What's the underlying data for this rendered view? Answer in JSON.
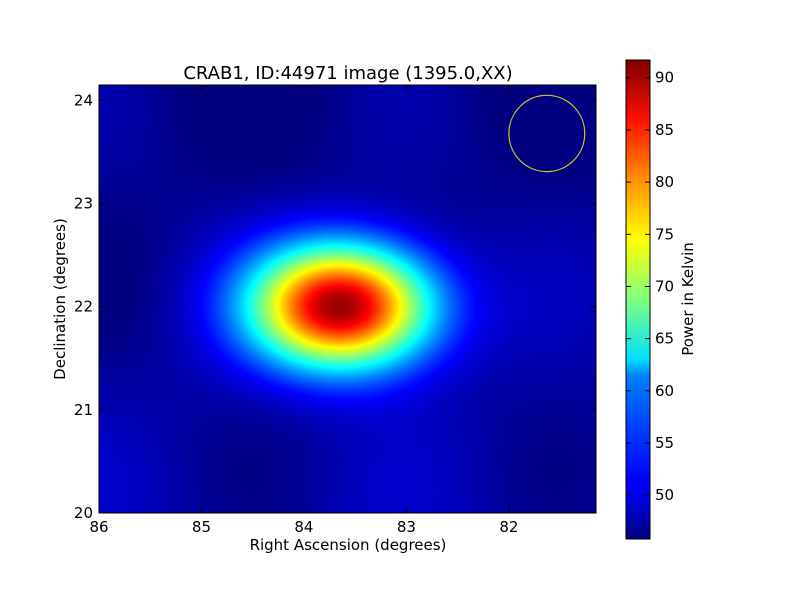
{
  "chart_data": {
    "type": "heatmap",
    "title": "CRAB1, ID:44971 image (1395.0,XX)",
    "xlabel": "Right Ascension (degrees)",
    "ylabel": "Declination (degrees)",
    "xlim": [
      86,
      81.15
    ],
    "ylim": [
      20,
      24.15
    ],
    "x_reversed": true,
    "xticks": [
      86,
      85,
      84,
      83,
      82
    ],
    "yticks": [
      20,
      21,
      22,
      23,
      24
    ],
    "grid": false,
    "colormap": "jet",
    "background_value": 47,
    "source": {
      "peak_ra": 83.63,
      "peak_dec": 22.01,
      "peak_value": 91,
      "ra_sigma": 0.62,
      "dec_sigma": 0.42
    },
    "beam_circle": {
      "ra": 81.63,
      "dec": 23.68,
      "radius_deg": 0.37,
      "color": "#c8c832"
    },
    "colorbar": {
      "label": "Power in Kelvin",
      "min": 45.8,
      "max": 91.7,
      "ticks": [
        50,
        55,
        60,
        65,
        70,
        75,
        80,
        85,
        90
      ]
    }
  }
}
